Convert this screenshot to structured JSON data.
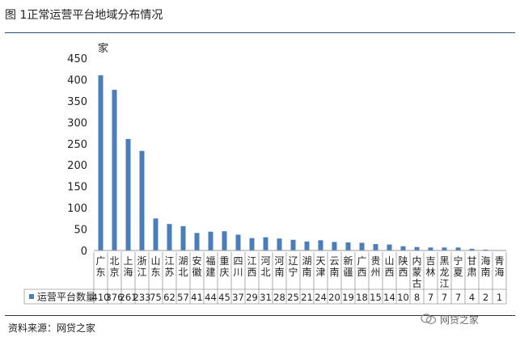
{
  "figure": {
    "title": "图 1正常运营平台地域分布情况",
    "source": "资料来源：网贷之家",
    "watermark": "网贷之家"
  },
  "chart_data": {
    "type": "bar",
    "unit_label": "家",
    "ylim": [
      0,
      450
    ],
    "yticks": [
      0,
      50,
      100,
      150,
      200,
      250,
      300,
      350,
      400,
      450
    ],
    "grid": false,
    "bar_color": "#4a7ebb",
    "categories": [
      "广东",
      "北京",
      "上海",
      "浙江",
      "山东",
      "江苏",
      "湖北",
      "安徽",
      "福建",
      "重庆",
      "四川",
      "江西",
      "河北",
      "河南",
      "辽宁",
      "湖南",
      "天津",
      "云南",
      "新疆",
      "广西",
      "贵州",
      "山西",
      "陕西",
      "内蒙古",
      "吉林",
      "黑龙江",
      "宁夏",
      "甘肃",
      "海南",
      "青海"
    ],
    "series": [
      {
        "name": "运营平台数量",
        "values": [
          410,
          376,
          261,
          233,
          75,
          62,
          57,
          41,
          44,
          45,
          37,
          29,
          31,
          28,
          25,
          21,
          24,
          20,
          19,
          18,
          15,
          14,
          10,
          8,
          7,
          7,
          7,
          4,
          2,
          1
        ]
      }
    ],
    "legend": "bottom-left (in data table)"
  }
}
